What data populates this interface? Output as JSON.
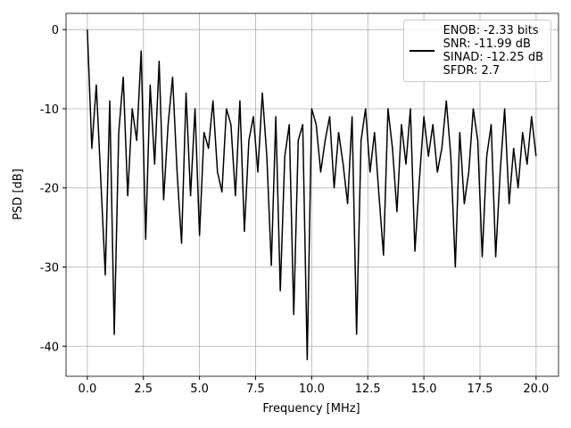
{
  "chart_data": {
    "type": "line",
    "xlabel": "Frequency [MHz]",
    "ylabel": "PSD [dB]",
    "x": [
      0,
      0.2,
      0.4,
      0.6,
      0.8,
      1,
      1.2,
      1.4,
      1.6,
      1.8,
      2,
      2.2,
      2.4,
      2.6,
      2.8,
      3,
      3.2,
      3.4,
      3.6,
      3.8,
      4,
      4.2,
      4.4,
      4.6,
      4.8,
      5,
      5.2,
      5.4,
      5.6,
      5.8,
      6,
      6.2,
      6.4,
      6.6,
      6.8,
      7,
      7.2,
      7.4,
      7.6,
      7.8,
      8,
      8.2,
      8.4,
      8.6,
      8.8,
      9,
      9.2,
      9.4,
      9.6,
      9.8,
      10,
      10.2,
      10.4,
      10.6,
      10.8,
      11,
      11.2,
      11.4,
      11.6,
      11.8,
      12,
      12.2,
      12.4,
      12.6,
      12.8,
      13,
      13.2,
      13.4,
      13.6,
      13.8,
      14,
      14.2,
      14.4,
      14.6,
      14.8,
      15,
      15.2,
      15.4,
      15.6,
      15.8,
      16,
      16.2,
      16.4,
      16.6,
      16.8,
      17,
      17.2,
      17.4,
      17.6,
      17.8,
      18,
      18.2,
      18.4,
      18.6,
      18.8,
      19,
      19.2,
      19.4,
      19.6,
      19.8,
      20
    ],
    "series": [
      {
        "name": "ENOB: -2.33 bits\nSNR: -11.99 dB\nSINAD: -12.25 dB\nSFDR: 2.7",
        "color": "#000000",
        "values": [
          0,
          -15,
          -7,
          -19,
          -31,
          -9,
          -38.5,
          -13,
          -6,
          -21,
          -10,
          -14,
          -2.7,
          -26.5,
          -7,
          -17,
          -4,
          -21.5,
          -12,
          -6,
          -18,
          -27,
          -8,
          -21,
          -10,
          -26,
          -13,
          -15,
          -9,
          -18,
          -20.5,
          -10,
          -12,
          -21,
          -9,
          -25.5,
          -14,
          -11,
          -18,
          -8,
          -16,
          -29.8,
          -11,
          -33,
          -16,
          -12,
          -36,
          -14,
          -12,
          -41.7,
          -10,
          -12,
          -18,
          -14,
          -11,
          -20,
          -13,
          -17,
          -22,
          -11,
          -38.5,
          -14,
          -10,
          -18,
          -13,
          -21,
          -28.5,
          -10,
          -15,
          -23,
          -12,
          -17,
          -10,
          -28,
          -19,
          -11,
          -16,
          -12,
          -18,
          -15,
          -9,
          -16,
          -30,
          -13,
          -22,
          -18,
          -10,
          -14,
          -28.7,
          -16,
          -12,
          -28.7,
          -18,
          -10,
          -22,
          -15,
          -20,
          -13,
          -17,
          -11,
          -16
        ]
      }
    ],
    "xlim": [
      -0.95,
      21
    ],
    "ylim": [
      -43.8,
      2.05
    ],
    "xticks": [
      {
        "value": 0,
        "label": "0.0"
      },
      2.5,
      {
        "value": 5,
        "label": "5.0"
      },
      7.5,
      {
        "value": 10,
        "label": "10.0"
      },
      12.5,
      {
        "value": 15,
        "label": "15.0"
      },
      17.5,
      {
        "value": 20,
        "label": "20.0"
      }
    ],
    "yticks": [
      0,
      -10,
      -20,
      -30,
      -40
    ],
    "grid": true,
    "legend": "upper right"
  }
}
